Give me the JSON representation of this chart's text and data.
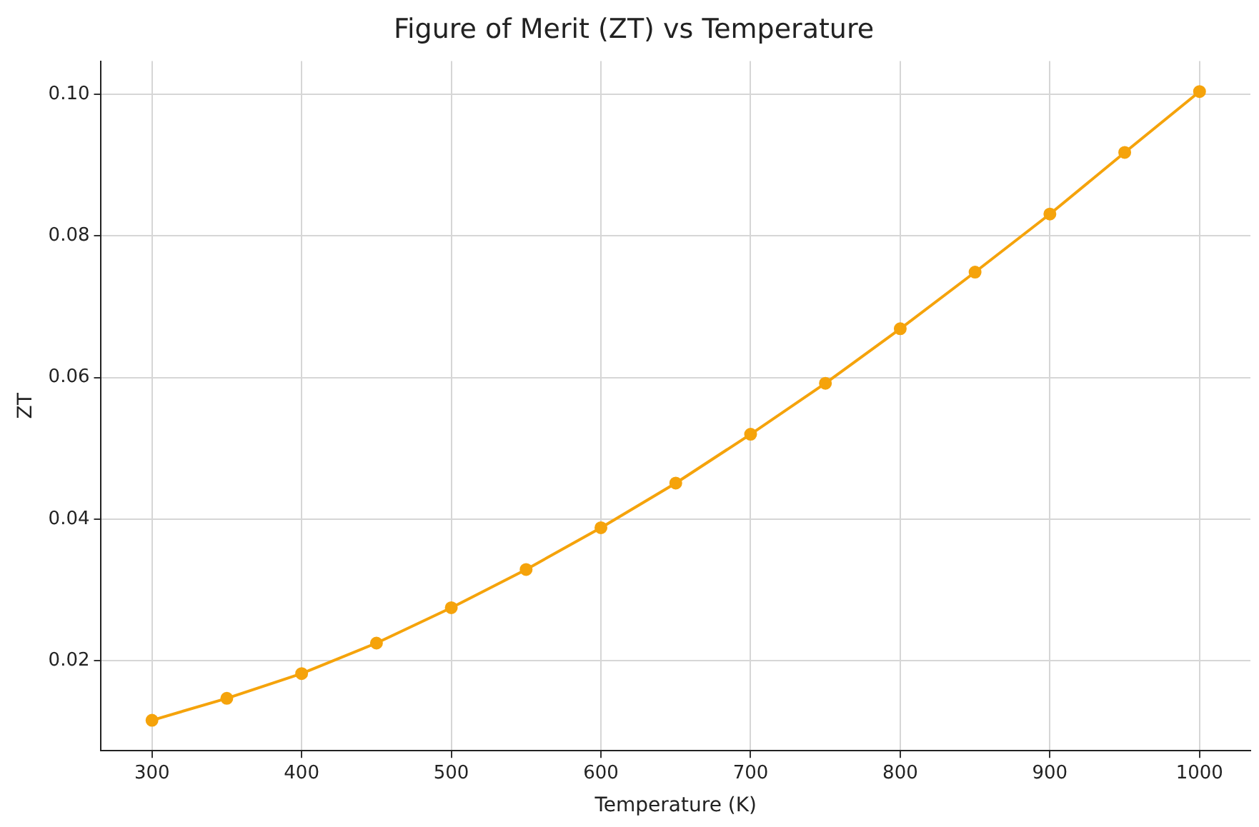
{
  "chart_data": {
    "type": "line",
    "title": "Figure of Merit (ZT) vs Temperature",
    "xlabel": "Temperature (K)",
    "ylabel": "ZT",
    "x": [
      300,
      350,
      400,
      450,
      500,
      550,
      600,
      650,
      700,
      750,
      800,
      850,
      900,
      950,
      1000
    ],
    "series": [
      {
        "color": "#f5a30b",
        "values": [
          0.0116,
          0.0147,
          0.0182,
          0.0225,
          0.0275,
          0.0329,
          0.0388,
          0.0451,
          0.052,
          0.0592,
          0.0669,
          0.0749,
          0.0831,
          0.0918,
          0.1004
        ]
      }
    ],
    "xlim": [
      266,
      1034
    ],
    "xticks": [
      300,
      400,
      500,
      600,
      700,
      800,
      900,
      1000
    ],
    "ylim": [
      0.0073,
      0.1047
    ],
    "yticks": [
      {
        "value": 0.02,
        "label": "0.02"
      },
      {
        "value": 0.04,
        "label": "0.04"
      },
      {
        "value": 0.06,
        "label": "0.06"
      },
      {
        "value": 0.08,
        "label": "0.08"
      },
      {
        "value": 0.1,
        "label": "0.10"
      }
    ],
    "grid": true,
    "marker": "circle",
    "line_style": "solid"
  }
}
